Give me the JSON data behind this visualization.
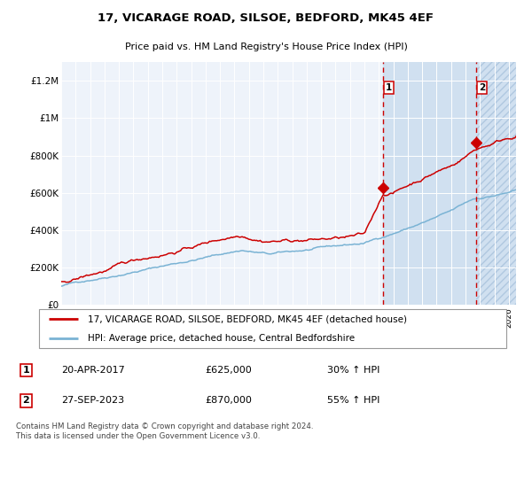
{
  "title": "17, VICARAGE ROAD, SILSOE, BEDFORD, MK45 4EF",
  "subtitle": "Price paid vs. HM Land Registry's House Price Index (HPI)",
  "sale1_date": "20-APR-2017",
  "sale1_price": 625000,
  "sale1_pct": "30%",
  "sale2_date": "27-SEP-2023",
  "sale2_price": 870000,
  "sale2_pct": "55%",
  "legend1": "17, VICARAGE ROAD, SILSOE, BEDFORD, MK45 4EF (detached house)",
  "legend2": "HPI: Average price, detached house, Central Bedfordshire",
  "footer": "Contains HM Land Registry data © Crown copyright and database right 2024.\nThis data is licensed under the Open Government Licence v3.0.",
  "hpi_color": "#7ab3d4",
  "price_color": "#cc0000",
  "bg_color": "#ffffff",
  "plot_bg": "#eef3fa",
  "shade_color": "#d0e0f0",
  "ylim": [
    0,
    1300000
  ],
  "yticks": [
    0,
    200000,
    400000,
    600000,
    800000,
    1000000,
    1200000
  ],
  "ytick_labels": [
    "£0",
    "£200K",
    "£400K",
    "£600K",
    "£800K",
    "£1M",
    "£1.2M"
  ],
  "xstart": 1995.0,
  "xend": 2026.5,
  "sale1_x": 2017.3,
  "sale2_x": 2023.75
}
